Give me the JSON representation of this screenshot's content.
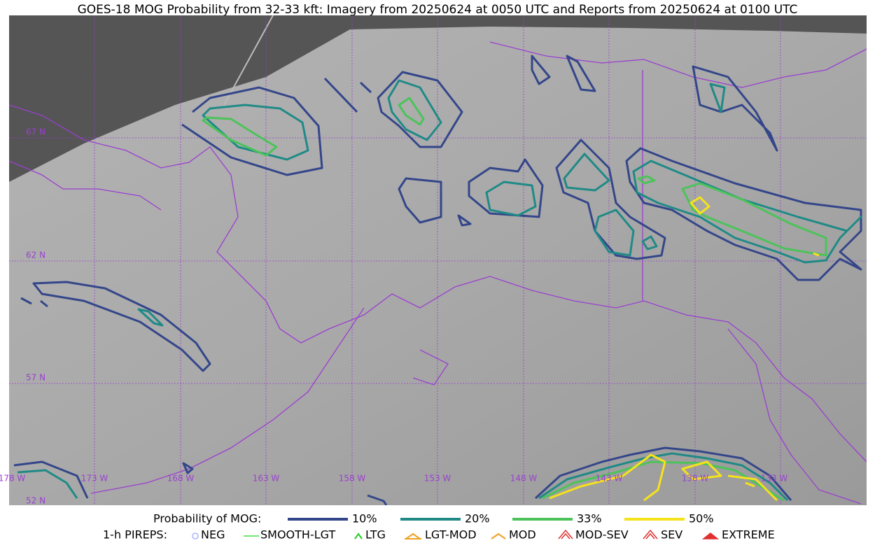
{
  "title": "GOES-18 MOG Probability from 32-33 kft: Imagery from 20250624 at 0050 UTC and Reports from 20250624 at 0100 UTC",
  "latitude_labels": [
    "67 N",
    "62 N",
    "57 N",
    "52 N"
  ],
  "longitude_labels": [
    "178 W",
    "173 W",
    "168 W",
    "163 W",
    "158 W",
    "153 W",
    "148 W",
    "143 W",
    "138 W",
    "133 W"
  ],
  "legend": {
    "title": "Probability of MOG:",
    "items": [
      {
        "label": "10%",
        "color": "#34468a"
      },
      {
        "label": "20%",
        "color": "#1f8a86"
      },
      {
        "label": "33%",
        "color": "#4cc35a"
      },
      {
        "label": "50%",
        "color": "#f5e21b"
      }
    ]
  },
  "pireps": {
    "title": "1-h PIREPS:",
    "items": [
      "NEG",
      "SMOOTH-LGT",
      "LTG",
      "LGT-MOD",
      "MOD",
      "MOD-SEV",
      "SEV",
      "EXTREME"
    ]
  }
}
